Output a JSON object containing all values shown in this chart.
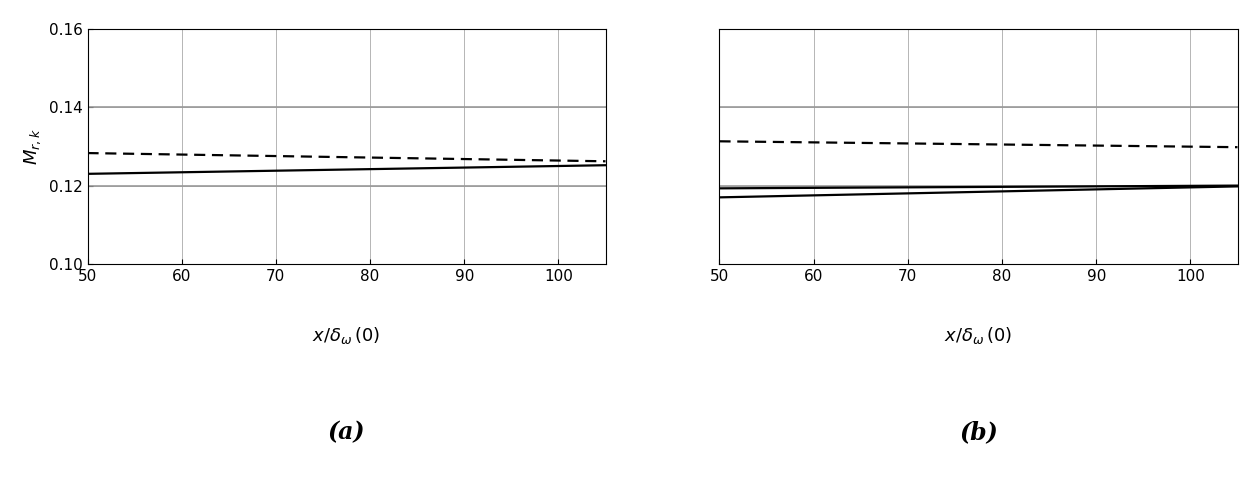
{
  "xlim": [
    50,
    105
  ],
  "ylim": [
    0.1,
    0.16
  ],
  "yticks": [
    0.1,
    0.12,
    0.14,
    0.16
  ],
  "xticks": [
    50,
    60,
    70,
    80,
    90,
    100
  ],
  "panel_a": {
    "dashed_line": {
      "x": [
        50,
        105
      ],
      "y": [
        0.1283,
        0.1262
      ]
    },
    "solid_line1": {
      "x": [
        50,
        105
      ],
      "y": [
        0.123,
        0.1252
      ]
    },
    "ref_line1": 0.12,
    "ref_line2": 0.14
  },
  "panel_b": {
    "dashed_line": {
      "x": [
        50,
        105
      ],
      "y": [
        0.1313,
        0.1298
      ]
    },
    "solid_line1": {
      "x": [
        50,
        105
      ],
      "y": [
        0.1193,
        0.12
      ]
    },
    "solid_line2": {
      "x": [
        50,
        105
      ],
      "y": [
        0.117,
        0.1198
      ]
    },
    "ref_line1": 0.12,
    "ref_line2": 0.14
  },
  "label_a": "(a)",
  "label_b": "(b)",
  "line_color": "#000000",
  "ref_color": "#999999",
  "bg_color": "#ffffff",
  "grid_color": "#aaaaaa"
}
